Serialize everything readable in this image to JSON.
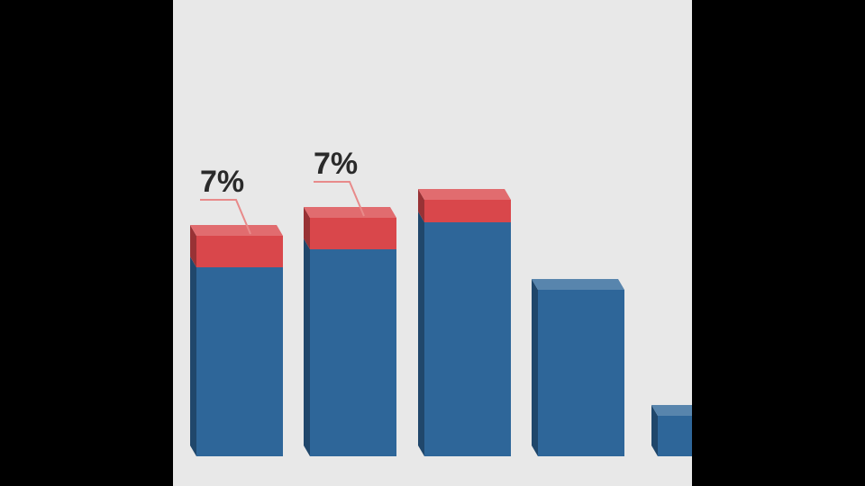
{
  "chart_data": {
    "type": "bar",
    "stacked": true,
    "categories": [
      null,
      null,
      null,
      null,
      null
    ],
    "series": [
      {
        "color": "#2e6699",
        "values": [
          42,
          46,
          52,
          37,
          9
        ]
      },
      {
        "color": "#d9474b",
        "values": [
          7,
          7,
          5,
          null,
          null
        ],
        "value_labels": [
          "7%",
          "7%",
          null,
          null,
          null
        ]
      }
    ]
  }
}
